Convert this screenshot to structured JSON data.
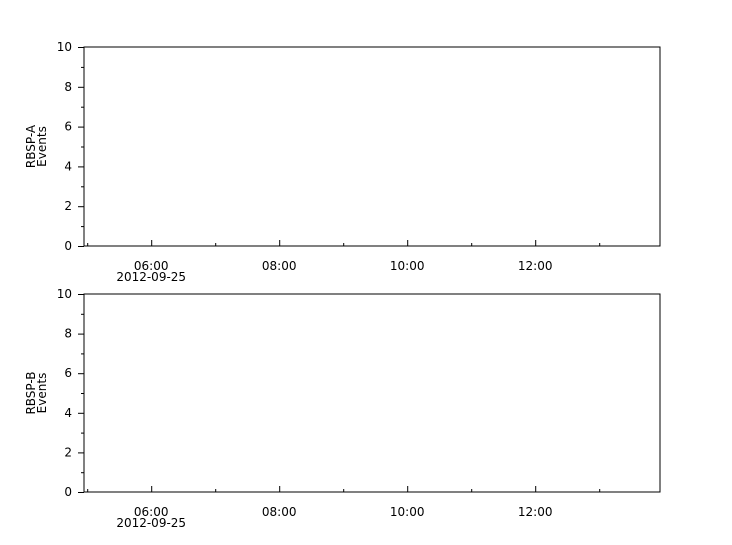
{
  "chart_data": [
    {
      "type": "line",
      "ylabel": [
        "RBSP-A",
        "Events"
      ],
      "ylim": [
        0,
        10
      ],
      "yticks": [
        0,
        2,
        4,
        6,
        8,
        10
      ],
      "xlim": [
        "04:57",
        "13:57"
      ],
      "xticks": [
        "06:00",
        "08:00",
        "10:00",
        "12:00"
      ],
      "xdate": "2012-09-25",
      "series": [],
      "grid": false
    },
    {
      "type": "line",
      "ylabel": [
        "RBSP-B",
        "Events"
      ],
      "ylim": [
        0,
        10
      ],
      "yticks": [
        0,
        2,
        4,
        6,
        8,
        10
      ],
      "xlim": [
        "04:57",
        "13:57"
      ],
      "xticks": [
        "06:00",
        "08:00",
        "10:00",
        "12:00"
      ],
      "xdate": "2012-09-25",
      "series": [],
      "grid": false
    }
  ]
}
